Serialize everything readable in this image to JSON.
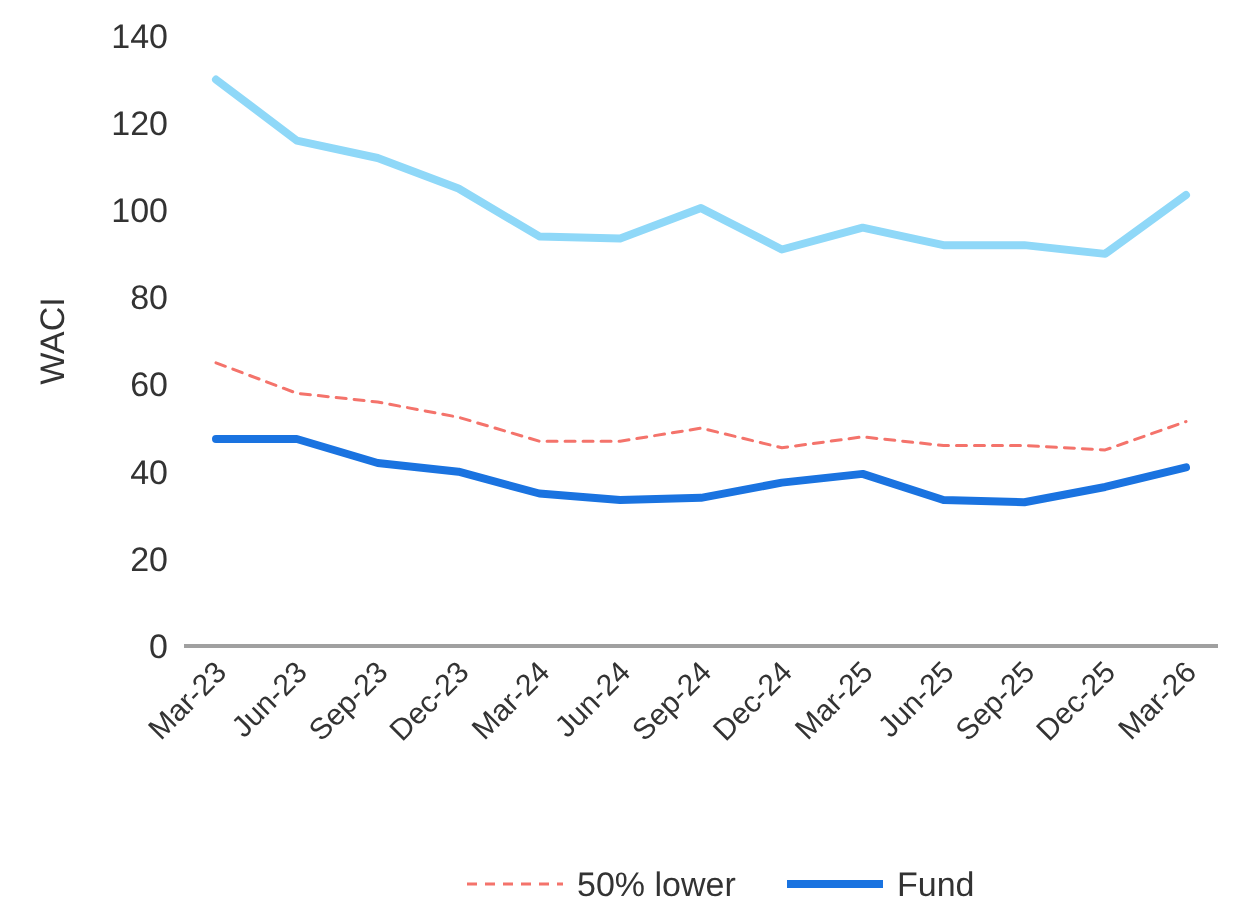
{
  "chart_data": {
    "type": "line",
    "ylabel": "WACI",
    "categories": [
      "Mar-23",
      "Jun-23",
      "Sep-23",
      "Dec-23",
      "Mar-24",
      "Jun-24",
      "Sep-24",
      "Dec-24",
      "Mar-25",
      "Jun-25",
      "Sep-25",
      "Dec-25",
      "Mar-26"
    ],
    "series": [
      {
        "color": "#8fd8f8",
        "values": [
          130,
          116,
          112,
          105,
          94,
          93.5,
          100.5,
          91,
          96,
          92,
          92,
          90,
          103.5
        ],
        "line_style": "solid"
      },
      {
        "name": "50% lower",
        "color": "#f4736b",
        "values": [
          65,
          58,
          56,
          52.5,
          47,
          47,
          50,
          45.5,
          48,
          46,
          46,
          45,
          51.5
        ],
        "line_style": "dashed"
      },
      {
        "name": "Fund",
        "color": "#1a73e0",
        "values": [
          47.5,
          47.5,
          42,
          40,
          35,
          33.5,
          34,
          37.5,
          39.5,
          33.5,
          33,
          36.5,
          41
        ],
        "line_style": "solid"
      }
    ],
    "ylim": [
      0,
      140
    ],
    "yticks": [
      0,
      20,
      40,
      60,
      80,
      100,
      120,
      140
    ],
    "legend": "bottom"
  }
}
